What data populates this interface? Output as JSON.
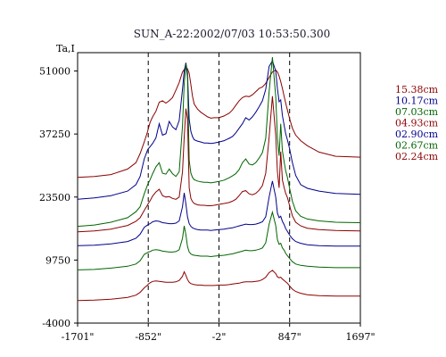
{
  "chart_data": {
    "type": "line",
    "title": "SUN_A-22:2002/07/03 10:53:50.300",
    "ylabel": "Ta,I",
    "xlabel": "",
    "x_tick_labels": [
      "-1701\"",
      "-852\"",
      "-2\"",
      "847\"",
      "1697\""
    ],
    "x_ticks": [
      -1701,
      -852,
      -2,
      847,
      1697
    ],
    "y_tick_labels": [
      "51000",
      "37250",
      "23500",
      "9750",
      "-4000"
    ],
    "y_ticks": [
      51000,
      37250,
      23500,
      9750,
      -4000
    ],
    "xlim": [
      -1701,
      1697
    ],
    "ylim": [
      -4000,
      55000
    ],
    "grid": false,
    "legend_position": "right",
    "vertical_markers": [
      -852,
      -2,
      847
    ],
    "x": [
      -1701,
      -1500,
      -1300,
      -1100,
      -1000,
      -950,
      -900,
      -860,
      -852,
      -830,
      -800,
      -760,
      -720,
      -680,
      -640,
      -600,
      -560,
      -520,
      -480,
      -440,
      -420,
      -400,
      -380,
      -360,
      -340,
      -320,
      -300,
      -260,
      -220,
      -180,
      -140,
      -100,
      -60,
      -2,
      60,
      120,
      160,
      200,
      240,
      280,
      320,
      360,
      400,
      440,
      480,
      520,
      560,
      600,
      640,
      680,
      700,
      720,
      740,
      760,
      780,
      800,
      820,
      847,
      880,
      920,
      980,
      1060,
      1200,
      1400,
      1697
    ],
    "series": [
      {
        "name": "15.38cm",
        "color": "#8b0000",
        "values": [
          27800,
          28000,
          28400,
          29600,
          31000,
          33000,
          35500,
          37800,
          38400,
          39800,
          41000,
          42200,
          44200,
          44500,
          44000,
          44500,
          45200,
          46800,
          48500,
          50800,
          51300,
          51600,
          51500,
          50500,
          48000,
          45500,
          43800,
          42700,
          42000,
          41500,
          41000,
          40700,
          40800,
          40800,
          41200,
          41800,
          42500,
          43500,
          44500,
          45200,
          45500,
          45400,
          45800,
          46500,
          47200,
          47500,
          48300,
          49600,
          50800,
          51200,
          50800,
          49900,
          48700,
          47200,
          45500,
          44000,
          42500,
          40600,
          38500,
          37000,
          35800,
          34700,
          33300,
          32400,
          32200
        ]
      },
      {
        "name": "10.17cm",
        "color": "#00008b",
        "values": [
          23000,
          23300,
          23800,
          24800,
          26200,
          28000,
          31800,
          33800,
          34000,
          34500,
          35200,
          36400,
          39500,
          37000,
          37300,
          40000,
          38800,
          38200,
          40200,
          47000,
          51000,
          52800,
          50500,
          40500,
          37800,
          36700,
          36000,
          35700,
          35500,
          35300,
          35300,
          35200,
          35300,
          35500,
          35800,
          36300,
          36700,
          37500,
          38500,
          39500,
          40800,
          40300,
          41000,
          42000,
          43200,
          44500,
          47000,
          52000,
          53200,
          51000,
          47200,
          44300,
          44700,
          41300,
          39200,
          37300,
          36000,
          34000,
          31000,
          28200,
          26200,
          25400,
          24800,
          24300,
          24100
        ]
      },
      {
        "name": "07.03cm",
        "color": "#006400",
        "values": [
          17100,
          17400,
          18000,
          19000,
          20300,
          21400,
          24200,
          26200,
          26500,
          27300,
          28600,
          30100,
          31000,
          28700,
          28500,
          29600,
          28600,
          28000,
          29000,
          39000,
          48200,
          52500,
          49500,
          31500,
          28700,
          27800,
          27300,
          27000,
          26800,
          26700,
          26700,
          26600,
          26700,
          26900,
          27200,
          27700,
          28100,
          28600,
          29500,
          31000,
          31800,
          30700,
          30500,
          31000,
          32000,
          33200,
          36300,
          46500,
          54000,
          45500,
          36500,
          32500,
          39500,
          33600,
          31200,
          29200,
          27800,
          25400,
          22600,
          20500,
          19300,
          18700,
          18300,
          18000,
          17900
        ]
      },
      {
        "name": "04.93cm",
        "color": "#8b0000",
        "values": [
          15900,
          16100,
          16500,
          17300,
          18200,
          19000,
          20600,
          21800,
          22100,
          22700,
          23700,
          24600,
          25200,
          23800,
          23500,
          23600,
          23200,
          23000,
          23500,
          29000,
          36500,
          42800,
          40500,
          25500,
          23200,
          22500,
          22100,
          21800,
          21700,
          21700,
          21600,
          21600,
          21700,
          21900,
          22100,
          22300,
          22600,
          23000,
          23800,
          24700,
          24900,
          24200,
          24000,
          24300,
          25000,
          26000,
          28700,
          36500,
          45500,
          37000,
          29000,
          25500,
          33400,
          27200,
          25600,
          24300,
          23400,
          21600,
          19400,
          18000,
          17200,
          16700,
          16400,
          16200,
          16100
        ]
      },
      {
        "name": "02.90cm",
        "color": "#00008b",
        "values": [
          12900,
          13000,
          13300,
          13800,
          14500,
          15400,
          16900,
          17400,
          17500,
          17700,
          18100,
          18300,
          18200,
          17900,
          17800,
          17700,
          17700,
          17800,
          18300,
          21400,
          24400,
          22000,
          19200,
          17700,
          17100,
          16800,
          16600,
          16400,
          16300,
          16300,
          16300,
          16200,
          16300,
          16400,
          16500,
          16700,
          16800,
          17000,
          17200,
          17400,
          17600,
          17500,
          17500,
          17600,
          17800,
          18100,
          19200,
          23500,
          27000,
          23500,
          20000,
          19000,
          19300,
          18200,
          17500,
          16600,
          16000,
          15200,
          14400,
          13800,
          13400,
          13100,
          12900,
          12800,
          12800
        ]
      },
      {
        "name": "02.67cm",
        "color": "#006400",
        "values": [
          7600,
          7700,
          8000,
          8400,
          8900,
          9600,
          11000,
          11400,
          11500,
          11600,
          11900,
          12000,
          11900,
          11700,
          11600,
          11500,
          11500,
          11600,
          12000,
          14500,
          17200,
          15300,
          12700,
          11500,
          11100,
          10900,
          10800,
          10700,
          10600,
          10600,
          10600,
          10500,
          10600,
          10700,
          10800,
          11000,
          11100,
          11300,
          11500,
          11700,
          11900,
          11800,
          11800,
          11900,
          12100,
          12400,
          13500,
          17600,
          20200,
          17300,
          14200,
          13200,
          13400,
          12400,
          11900,
          11200,
          10700,
          10100,
          9400,
          8900,
          8600,
          8400,
          8200,
          8100,
          8100
        ]
      },
      {
        "name": "02.24cm",
        "color": "#8b0000",
        "values": [
          900,
          1000,
          1200,
          1600,
          2100,
          2700,
          3700,
          4300,
          4500,
          4800,
          5100,
          5200,
          5100,
          5000,
          4900,
          4900,
          4900,
          5000,
          5300,
          6200,
          7200,
          6400,
          5500,
          4900,
          4600,
          4500,
          4400,
          4300,
          4300,
          4200,
          4200,
          4200,
          4200,
          4300,
          4300,
          4400,
          4500,
          4600,
          4700,
          4900,
          5000,
          5000,
          5000,
          5100,
          5200,
          5500,
          6000,
          7000,
          7500,
          6800,
          6100,
          5900,
          6000,
          5600,
          5300,
          5000,
          4700,
          4100,
          3400,
          2900,
          2500,
          2200,
          2000,
          1900,
          1900
        ]
      }
    ]
  }
}
